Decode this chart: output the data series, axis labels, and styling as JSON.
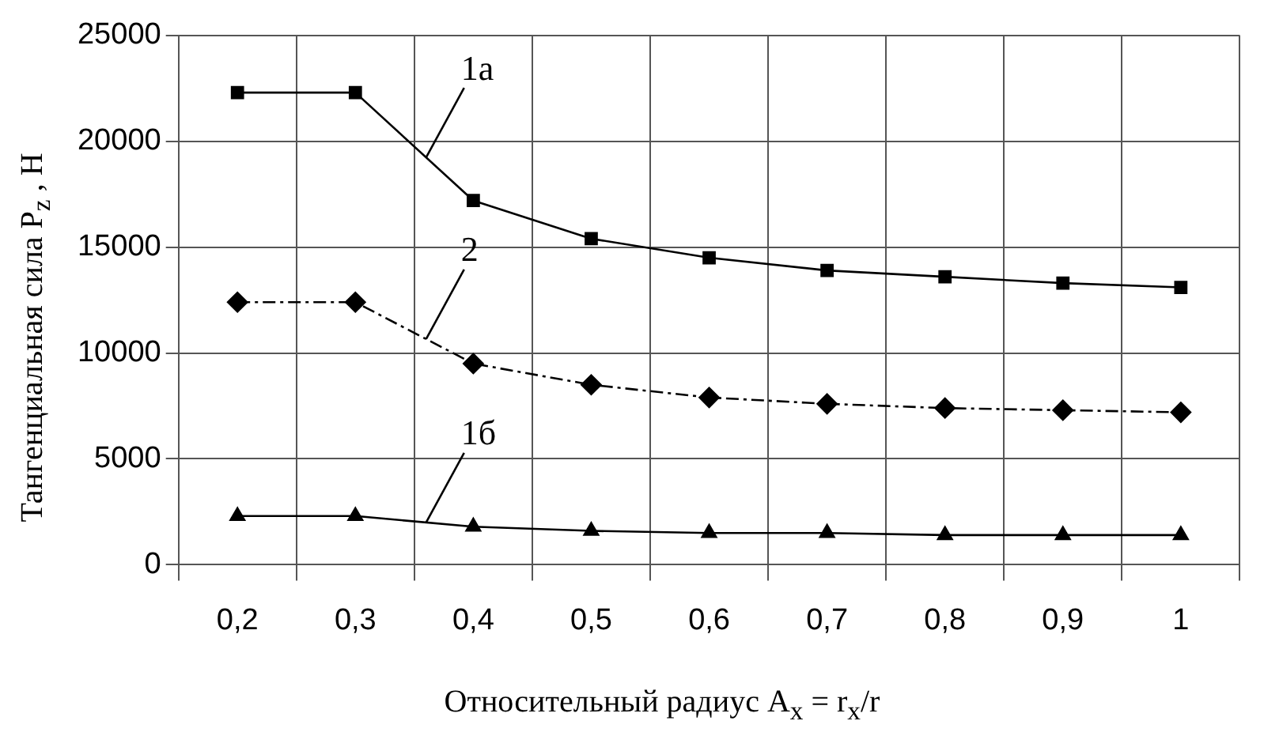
{
  "chart_data": {
    "type": "line",
    "xlabel": "Относительный радиус A$_{x}$ = r$_{x}$/r",
    "ylabel": "Тангенциальная сила P$_{z}$ , Н",
    "categories": [
      "0,2",
      "0,3",
      "0,4",
      "0,5",
      "0,6",
      "0,7",
      "0,8",
      "0,9",
      "1"
    ],
    "series": [
      {
        "name": "1а",
        "color": "#000000",
        "marker": "square",
        "line_style": "solid",
        "values": [
          22300,
          22300,
          17200,
          15400,
          14500,
          13900,
          13600,
          13300,
          13100
        ]
      },
      {
        "name": "2",
        "color": "#000000",
        "marker": "diamond",
        "line_style": "dashed",
        "values": [
          12400,
          12400,
          9500,
          8500,
          7900,
          7600,
          7400,
          7300,
          7200
        ]
      },
      {
        "name": "1б",
        "color": "#000000",
        "marker": "triangle",
        "line_style": "solid",
        "values": [
          2300,
          2300,
          1800,
          1600,
          1500,
          1500,
          1400,
          1400,
          1400
        ]
      }
    ],
    "ylim": [
      0,
      25000
    ],
    "yticks": [
      0,
      5000,
      10000,
      15000,
      20000,
      25000
    ],
    "grid": true,
    "legend": false
  }
}
